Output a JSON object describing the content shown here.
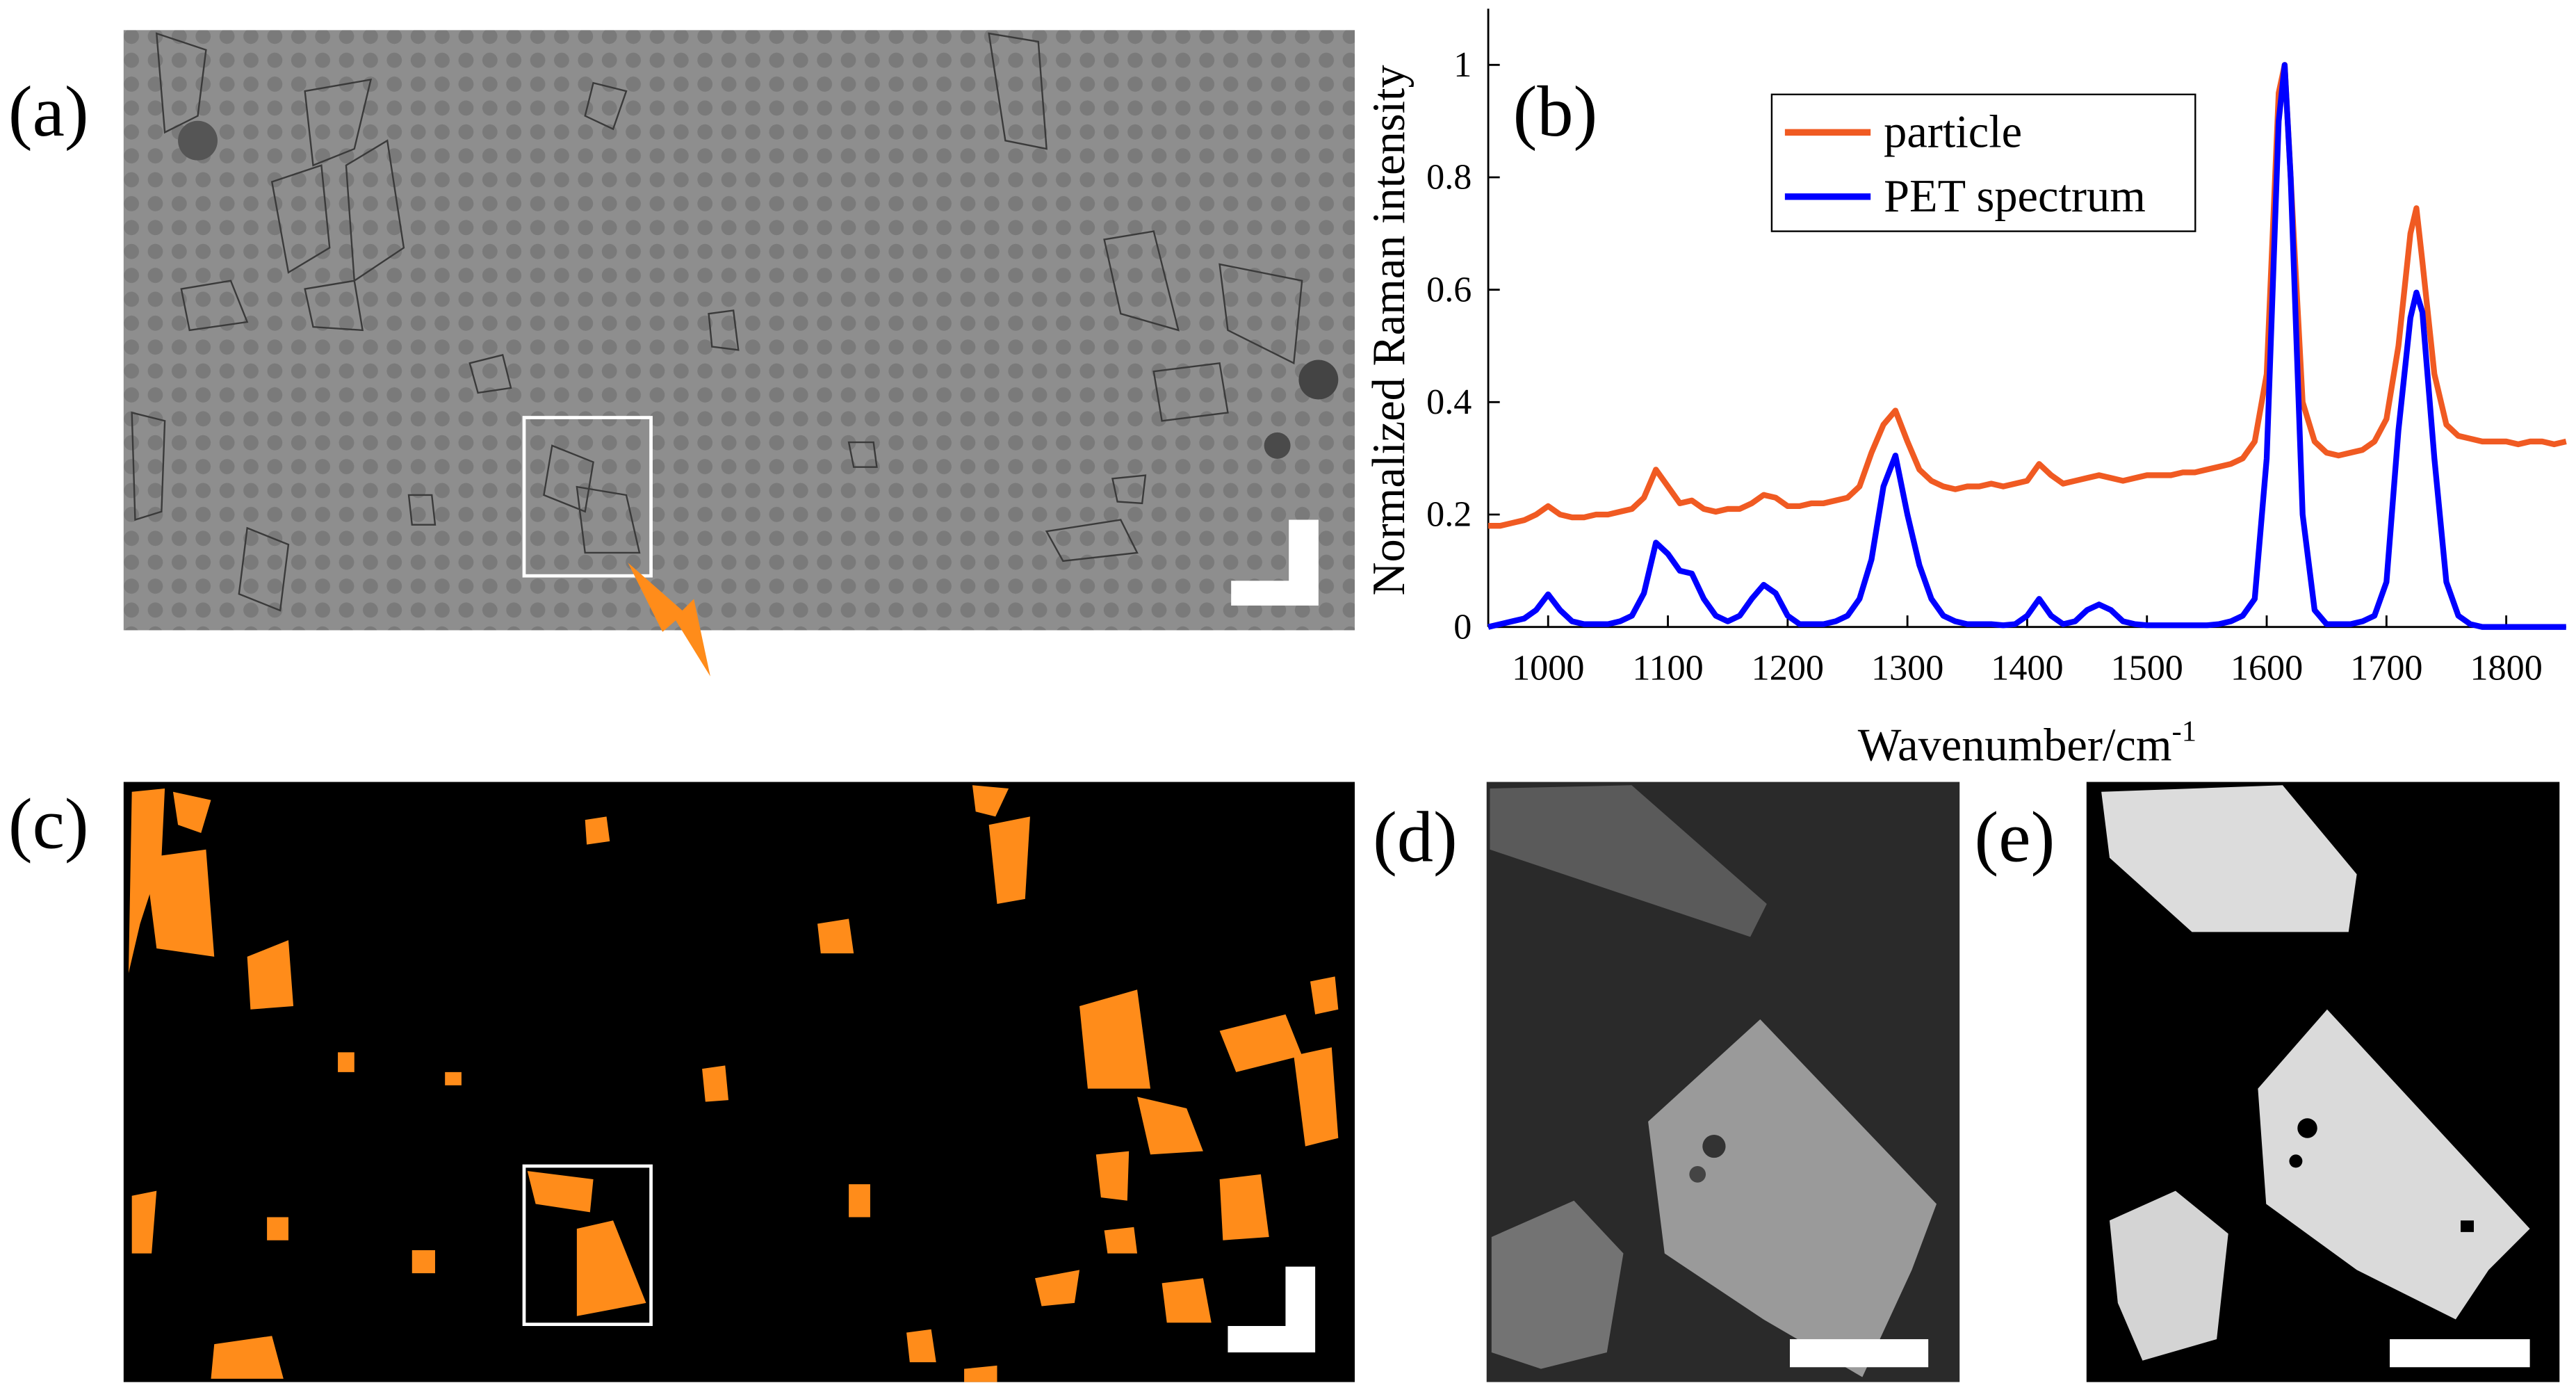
{
  "panels": [
    {
      "label": "(a)"
    },
    {
      "label": "(b)"
    },
    {
      "label": "(c)"
    },
    {
      "label": "(d)"
    },
    {
      "label": "(e)"
    }
  ],
  "chart_data": {
    "type": "line",
    "xlabel": "Wavenumber/cm",
    "xlabel_sup": "-1",
    "ylabel": "Normalized Raman intensity",
    "xlim": [
      950,
      1850
    ],
    "xticks": [
      1000,
      1100,
      1200,
      1300,
      1400,
      1500,
      1600,
      1700,
      1800
    ],
    "ylim": [
      0,
      1.1
    ],
    "yticks": [
      0,
      0.2,
      0.4,
      0.6,
      0.8,
      1
    ],
    "legend": "top-center",
    "grid": false,
    "x": [
      950,
      960,
      970,
      980,
      990,
      1000,
      1010,
      1020,
      1030,
      1040,
      1050,
      1060,
      1070,
      1080,
      1090,
      1100,
      1110,
      1120,
      1130,
      1140,
      1150,
      1160,
      1170,
      1180,
      1190,
      1200,
      1210,
      1220,
      1230,
      1240,
      1250,
      1260,
      1270,
      1280,
      1290,
      1300,
      1310,
      1320,
      1330,
      1340,
      1350,
      1360,
      1370,
      1380,
      1390,
      1400,
      1410,
      1420,
      1430,
      1440,
      1450,
      1460,
      1470,
      1480,
      1490,
      1500,
      1510,
      1520,
      1530,
      1540,
      1550,
      1560,
      1570,
      1580,
      1590,
      1600,
      1610,
      1615,
      1620,
      1630,
      1640,
      1650,
      1660,
      1670,
      1680,
      1690,
      1700,
      1710,
      1720,
      1725,
      1730,
      1740,
      1750,
      1760,
      1770,
      1780,
      1790,
      1800,
      1810,
      1820,
      1830,
      1840,
      1850
    ],
    "series": [
      {
        "name": "particle",
        "color": "#f05a22",
        "values": [
          0.18,
          0.18,
          0.185,
          0.19,
          0.2,
          0.215,
          0.2,
          0.195,
          0.195,
          0.2,
          0.2,
          0.205,
          0.21,
          0.23,
          0.28,
          0.25,
          0.22,
          0.225,
          0.21,
          0.205,
          0.21,
          0.21,
          0.22,
          0.235,
          0.23,
          0.215,
          0.215,
          0.22,
          0.22,
          0.225,
          0.23,
          0.25,
          0.31,
          0.36,
          0.385,
          0.33,
          0.28,
          0.26,
          0.25,
          0.245,
          0.25,
          0.25,
          0.255,
          0.25,
          0.255,
          0.26,
          0.29,
          0.27,
          0.255,
          0.26,
          0.265,
          0.27,
          0.265,
          0.26,
          0.265,
          0.27,
          0.27,
          0.27,
          0.275,
          0.275,
          0.28,
          0.285,
          0.29,
          0.3,
          0.33,
          0.45,
          0.95,
          1.0,
          0.8,
          0.4,
          0.33,
          0.31,
          0.305,
          0.31,
          0.315,
          0.33,
          0.37,
          0.5,
          0.7,
          0.745,
          0.65,
          0.45,
          0.36,
          0.34,
          0.335,
          0.33,
          0.33,
          0.33,
          0.325,
          0.33,
          0.33,
          0.325,
          0.33
        ]
      },
      {
        "name": "PET spectrum",
        "color": "#0000ff",
        "values": [
          0,
          0.005,
          0.01,
          0.015,
          0.03,
          0.058,
          0.03,
          0.01,
          0.005,
          0.005,
          0.005,
          0.01,
          0.02,
          0.06,
          0.15,
          0.13,
          0.1,
          0.095,
          0.05,
          0.02,
          0.01,
          0.02,
          0.05,
          0.075,
          0.06,
          0.02,
          0.005,
          0.005,
          0.005,
          0.01,
          0.02,
          0.05,
          0.12,
          0.25,
          0.305,
          0.2,
          0.11,
          0.05,
          0.02,
          0.01,
          0.005,
          0.005,
          0.005,
          0.003,
          0.005,
          0.02,
          0.05,
          0.02,
          0.005,
          0.01,
          0.03,
          0.04,
          0.03,
          0.01,
          0.005,
          0.003,
          0.003,
          0.003,
          0.003,
          0.003,
          0.003,
          0.005,
          0.01,
          0.02,
          0.05,
          0.3,
          0.9,
          1.0,
          0.8,
          0.2,
          0.03,
          0.005,
          0.005,
          0.005,
          0.01,
          0.02,
          0.08,
          0.35,
          0.55,
          0.595,
          0.56,
          0.3,
          0.08,
          0.02,
          0.005,
          0,
          0,
          0,
          0,
          0,
          0,
          0,
          0
        ]
      }
    ]
  }
}
